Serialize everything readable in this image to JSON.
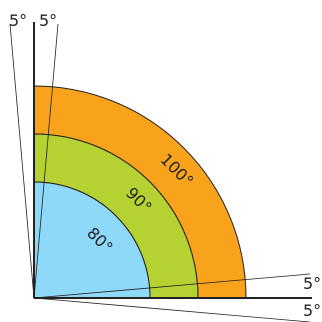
{
  "colors": {
    "outer_band": "#f9a31c",
    "middle_band": "#b6d132",
    "inner_sector": "#8ed8f8",
    "lines": "#222222"
  },
  "arcs": {
    "outer_label": "100°",
    "middle_label": "90°",
    "inner_label": "80°"
  },
  "tolerances": {
    "top_left": "5°",
    "top_right": "5°",
    "right_upper": "5°",
    "right_lower": "5°"
  }
}
